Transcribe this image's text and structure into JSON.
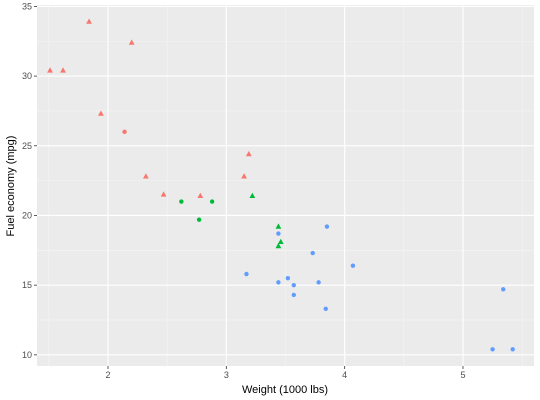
{
  "chart_data": {
    "type": "scatter",
    "xlabel": "Weight (1000 lbs)",
    "ylabel": "Fuel economy (mpg)",
    "xlim": [
      1.4,
      5.6
    ],
    "ylim": [
      9.2,
      35.1
    ],
    "x_ticks": [
      2,
      3,
      4,
      5
    ],
    "y_ticks": [
      10,
      15,
      20,
      25,
      30,
      35
    ],
    "x_tick_labels": [
      "2",
      "3",
      "4",
      "5"
    ],
    "y_tick_labels": [
      "10",
      "15",
      "20",
      "25",
      "30",
      "35"
    ],
    "grid": true,
    "legend": "none",
    "series": [
      {
        "color": "#F8766D",
        "shape": "triangle",
        "points": [
          [
            1.51,
            30.4
          ],
          [
            1.62,
            30.4
          ],
          [
            1.84,
            33.9
          ],
          [
            1.94,
            27.3
          ],
          [
            2.2,
            32.4
          ],
          [
            2.32,
            22.8
          ],
          [
            2.47,
            21.5
          ],
          [
            2.78,
            21.4
          ],
          [
            3.15,
            22.8
          ],
          [
            3.19,
            24.4
          ]
        ]
      },
      {
        "color": "#F8766D",
        "shape": "circle",
        "points": [
          [
            2.14,
            26.0
          ]
        ]
      },
      {
        "color": "#00BA38",
        "shape": "circle",
        "points": [
          [
            2.62,
            21.0
          ],
          [
            2.77,
            19.7
          ],
          [
            2.88,
            21.0
          ]
        ]
      },
      {
        "color": "#00BA38",
        "shape": "triangle",
        "points": [
          [
            3.22,
            21.4
          ],
          [
            3.44,
            19.2
          ],
          [
            3.44,
            17.8
          ],
          [
            3.46,
            18.1
          ]
        ]
      },
      {
        "color": "#619CFF",
        "shape": "circle",
        "points": [
          [
            3.17,
            15.8
          ],
          [
            3.44,
            18.7
          ],
          [
            3.44,
            15.2
          ],
          [
            3.52,
            15.5
          ],
          [
            3.57,
            15.0
          ],
          [
            3.57,
            14.3
          ],
          [
            3.73,
            17.3
          ],
          [
            3.78,
            15.2
          ],
          [
            3.84,
            13.3
          ],
          [
            3.85,
            19.2
          ],
          [
            4.07,
            16.4
          ],
          [
            5.25,
            10.4
          ],
          [
            5.34,
            14.7
          ],
          [
            5.42,
            10.4
          ]
        ]
      }
    ]
  }
}
